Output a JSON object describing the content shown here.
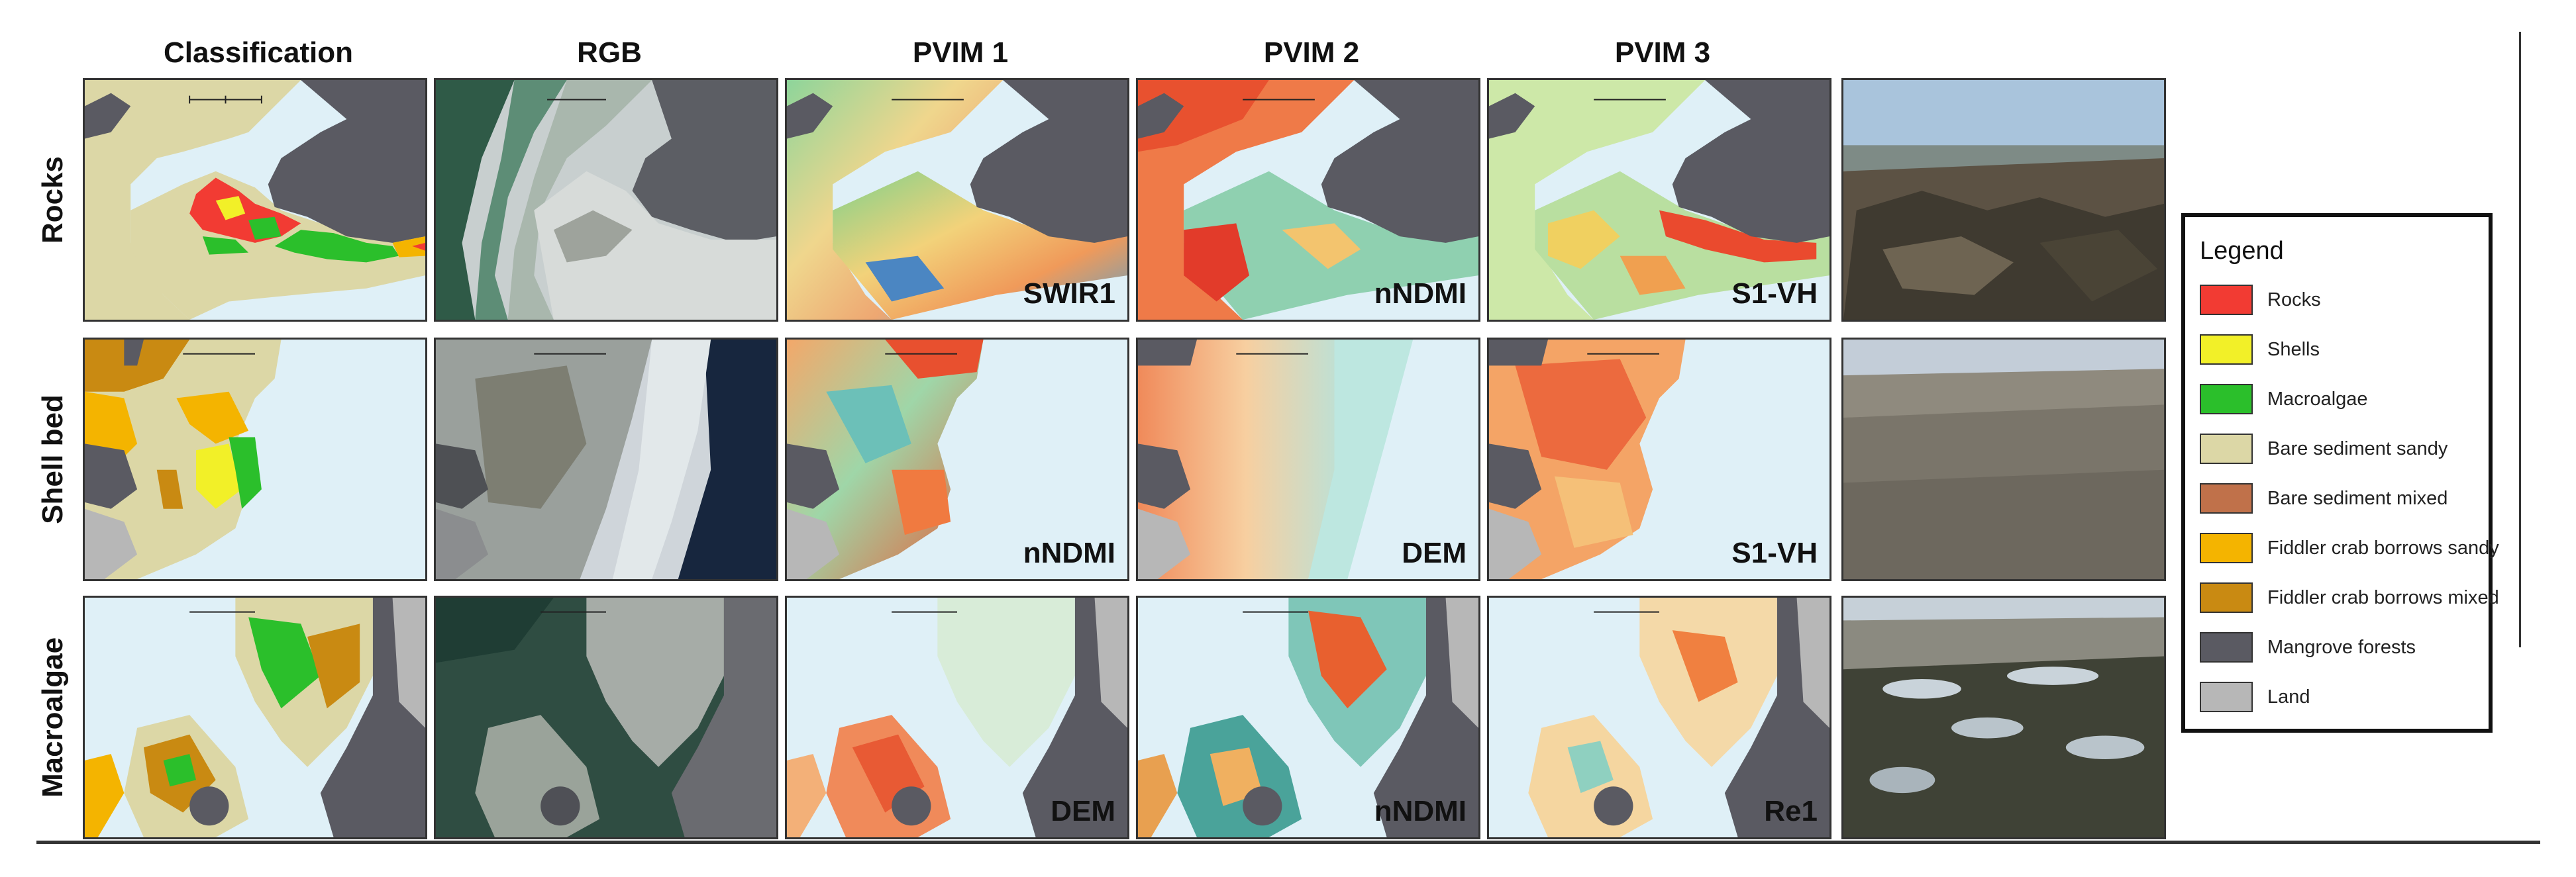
{
  "columns": [
    "Classification",
    "RGB",
    "PVIM 1",
    "PVIM 2",
    "PVIM 3"
  ],
  "rows": [
    {
      "label": "Rocks",
      "pvim": [
        "SWIR1",
        "nNDMI",
        "S1-VH"
      ]
    },
    {
      "label": "Shell bed",
      "pvim": [
        "nNDMI",
        "DEM",
        "S1-VH"
      ]
    },
    {
      "label": "Macroalgae",
      "pvim": [
        "DEM",
        "nNDMI",
        "Re1"
      ]
    }
  ],
  "legend": {
    "title": "Legend",
    "items": [
      {
        "label": "Rocks",
        "color": "#f23b33"
      },
      {
        "label": "Shells",
        "color": "#f2f028"
      },
      {
        "label": "Macroalgae",
        "color": "#2bbf2b"
      },
      {
        "label": "Bare sediment sandy",
        "color": "#dcd7a6"
      },
      {
        "label": "Bare sediment mixed",
        "color": "#c0714a"
      },
      {
        "label": "Fiddler crab borrows sandy",
        "color": "#f4b400"
      },
      {
        "label": "Fiddler crab borrows mixed",
        "color": "#c98a12"
      },
      {
        "label": "Mangrove forests",
        "color": "#5a5a62"
      },
      {
        "label": "Land",
        "color": "#b7b7b7"
      }
    ]
  }
}
